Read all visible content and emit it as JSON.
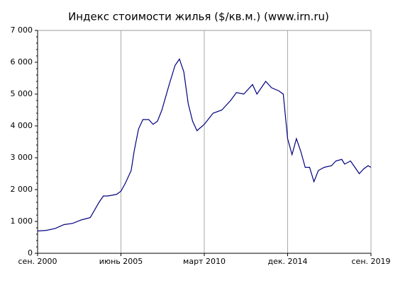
{
  "chart_data": {
    "type": "line",
    "title": "Индекс стоимости жилья ($/кв.м.) (www.irn.ru)",
    "x": [
      "2000-09",
      "2001-03",
      "2001-09",
      "2002-03",
      "2002-09",
      "2003-03",
      "2003-09",
      "2004-03",
      "2004-06",
      "2004-09",
      "2005-03",
      "2005-06",
      "2005-09",
      "2006-01",
      "2006-03",
      "2006-06",
      "2006-09",
      "2007-01",
      "2007-04",
      "2007-07",
      "2007-10",
      "2008-03",
      "2008-07",
      "2008-10",
      "2009-01",
      "2009-04",
      "2009-07",
      "2009-10",
      "2010-03",
      "2010-09",
      "2011-03",
      "2011-09",
      "2012-01",
      "2012-06",
      "2012-12",
      "2013-03",
      "2013-09",
      "2014-01",
      "2014-06",
      "2014-09",
      "2014-12",
      "2015-03",
      "2015-06",
      "2015-09",
      "2015-12",
      "2016-03",
      "2016-06",
      "2016-09",
      "2017-01",
      "2017-06",
      "2017-09",
      "2018-01",
      "2018-03",
      "2018-07",
      "2018-10",
      "2019-01",
      "2019-04",
      "2019-07",
      "2019-09"
    ],
    "series": [
      {
        "color": "#000080",
        "values": [
          700,
          720,
          780,
          900,
          940,
          1050,
          1120,
          1600,
          1800,
          1800,
          1850,
          1950,
          2200,
          2600,
          3200,
          3900,
          4200,
          4200,
          4050,
          4150,
          4500,
          5300,
          5900,
          6100,
          5700,
          4700,
          4150,
          3850,
          4050,
          4400,
          4500,
          4800,
          5050,
          5000,
          5300,
          5000,
          5400,
          5200,
          5100,
          5000,
          3600,
          3100,
          3600,
          3200,
          2700,
          2700,
          2250,
          2600,
          2700,
          2750,
          2900,
          2950,
          2800,
          2900,
          2700,
          2500,
          2650,
          2750,
          2700
        ]
      }
    ],
    "xlim": [
      "2000-09",
      "2019-09"
    ],
    "xticks": [
      {
        "value": "2000-09",
        "label": "сен. 2000"
      },
      {
        "value": "2005-06",
        "label": "июнь 2005"
      },
      {
        "value": "2010-03",
        "label": "март 2010"
      },
      {
        "value": "2014-12",
        "label": "дек. 2014"
      },
      {
        "value": "2019-09",
        "label": "сен. 2019"
      }
    ],
    "ylim": [
      0,
      7000
    ],
    "yticks": [
      0,
      {
        "value": 1000,
        "label": "1 000"
      },
      {
        "value": 2000,
        "label": "2 000"
      },
      {
        "value": 3000,
        "label": "3 000"
      },
      {
        "value": 4000,
        "label": "4 000"
      },
      {
        "value": 5000,
        "label": "5 000"
      },
      {
        "value": 6000,
        "label": "6 000"
      },
      {
        "value": 7000,
        "label": "7 000"
      }
    ],
    "grid": "x"
  }
}
